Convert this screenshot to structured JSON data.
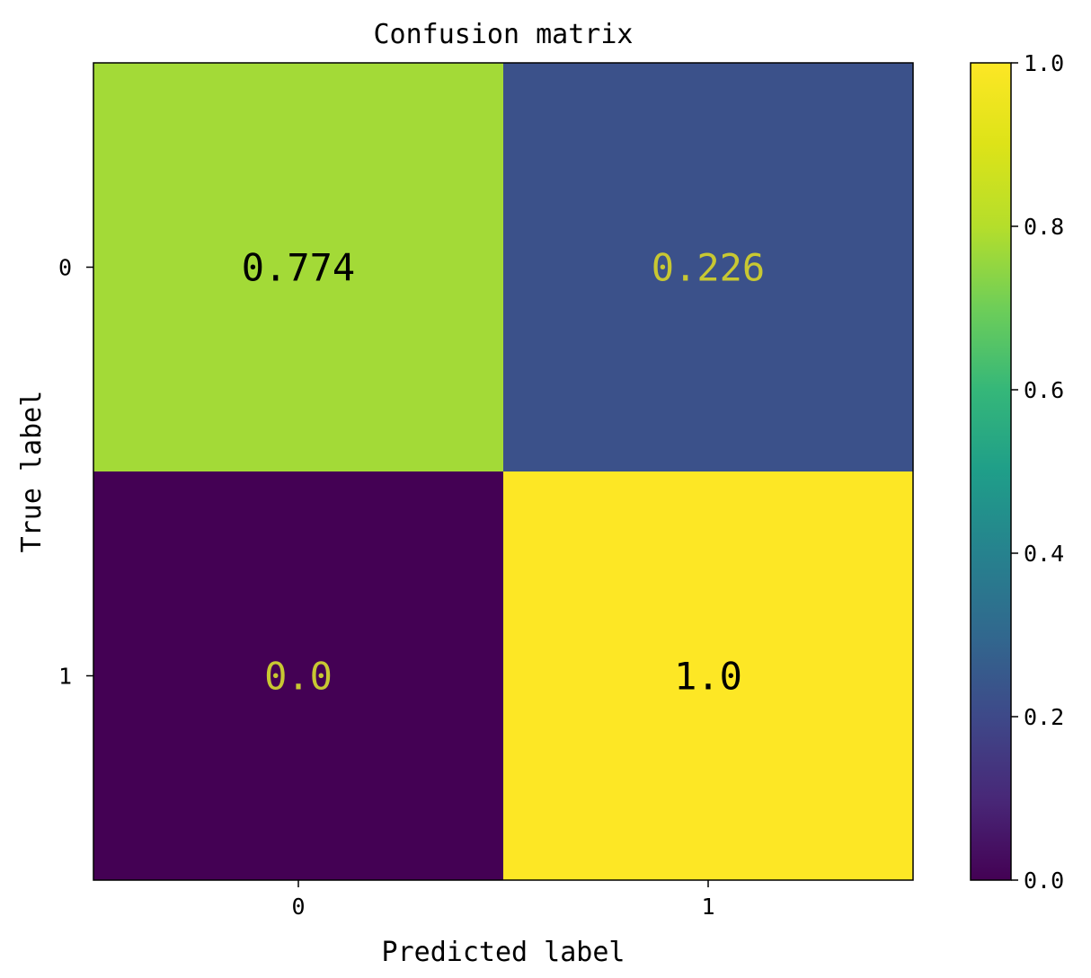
{
  "chart_data": {
    "type": "heatmap",
    "title": "Confusion matrix",
    "xlabel": "Predicted label",
    "ylabel": "True label",
    "x_tick_labels": [
      "0",
      "1"
    ],
    "y_tick_labels": [
      "0",
      "1"
    ],
    "values": [
      [
        0.774,
        0.226
      ],
      [
        0.0,
        1.0
      ]
    ],
    "cell_labels": [
      [
        "0.774",
        "0.226"
      ],
      [
        "0.0",
        "1.0"
      ]
    ],
    "colormap": "viridis",
    "colorbar": {
      "range": [
        0.0,
        1.0
      ],
      "ticks": [
        0.0,
        0.2,
        0.4,
        0.6,
        0.8,
        1.0
      ],
      "tick_labels": [
        "0.0",
        "0.2",
        "0.4",
        "0.6",
        "0.8",
        "1.0"
      ]
    },
    "grid": false,
    "colors": {
      "text_on_dark": "#c8c832",
      "text_on_light": "#000000",
      "low": "#440154",
      "high": "#fde725"
    }
  }
}
